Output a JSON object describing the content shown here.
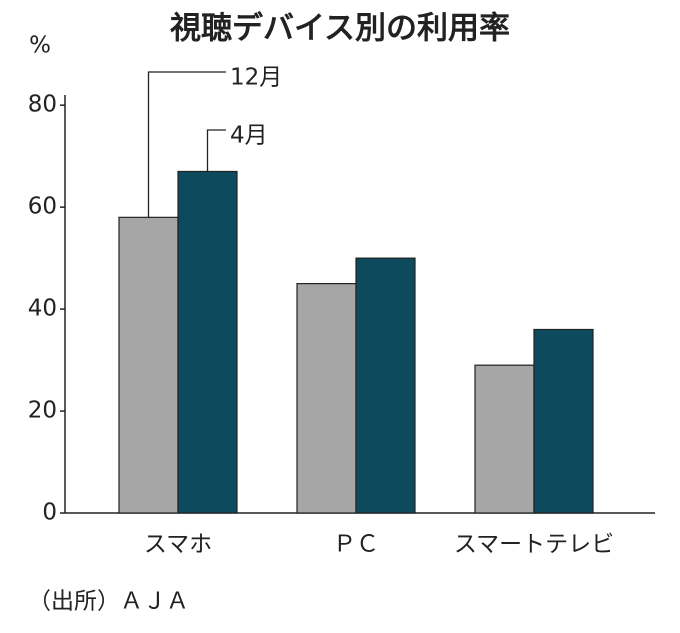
{
  "chart_data": {
    "type": "bar",
    "title": "視聴デバイス別の利用率",
    "y_label": "%",
    "categories": [
      "スマホ",
      "ＰＣ",
      "スマートテレビ"
    ],
    "series": [
      {
        "name": "12月",
        "color": "#a6a6a6",
        "values": [
          58,
          45,
          29
        ]
      },
      {
        "name": "4月",
        "color": "#0e4a5e",
        "values": [
          67,
          50,
          36
        ]
      }
    ],
    "ylim": [
      0,
      82
    ],
    "yticks": [
      0,
      20,
      40,
      60,
      80
    ],
    "source": "（出所）ＡＪＡ"
  }
}
